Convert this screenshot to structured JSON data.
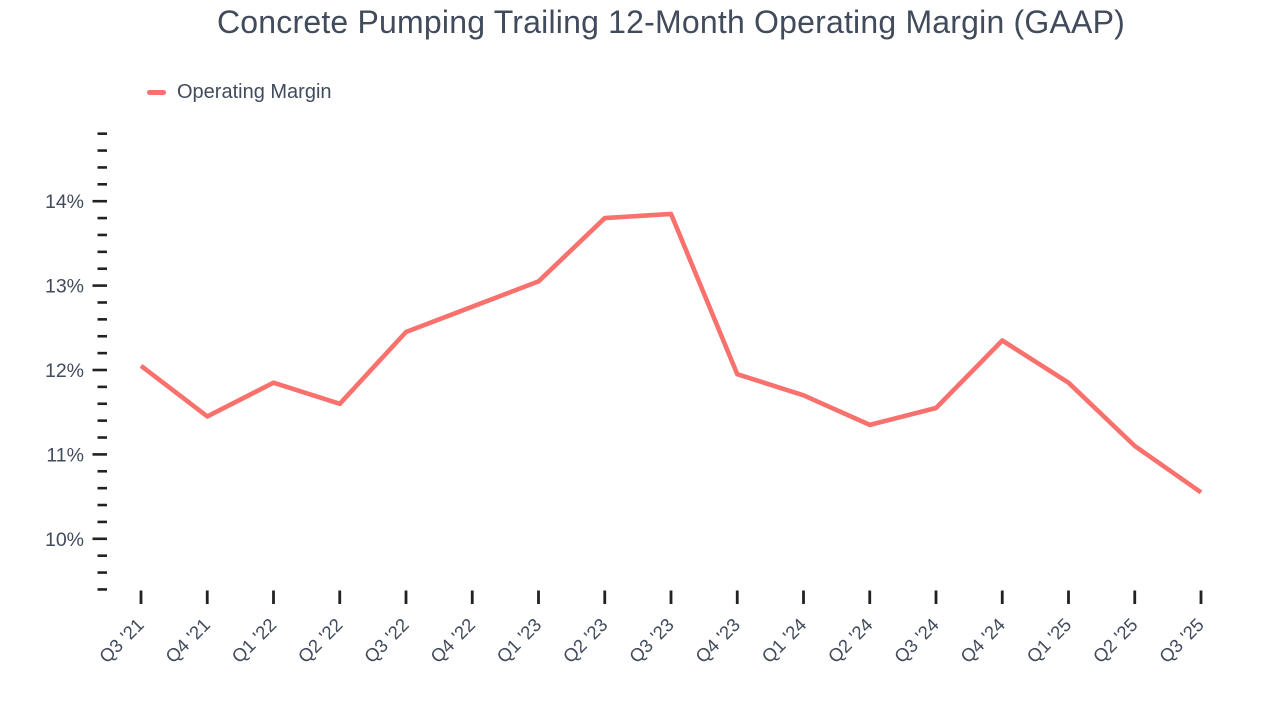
{
  "header": {
    "title": "Concrete Pumping Trailing 12-Month Operating Margin (GAAP)"
  },
  "legend": {
    "label": "Operating Margin"
  },
  "colors": {
    "line": "#F9716C",
    "label_text": "#414B5C",
    "tick": "#222222",
    "background": "#ffffff"
  },
  "chart_data": {
    "type": "line",
    "title": "Concrete Pumping Trailing 12-Month Operating Margin (GAAP)",
    "legend_position": "top-left",
    "grid": false,
    "xlabel": "",
    "ylabel": "",
    "y_unit": "%",
    "ylim": [
      9.4,
      14.8
    ],
    "y_minor_tick_step": 0.2,
    "y_major_tick_step": 1,
    "y_major_tick_labels": [
      "10%",
      "11%",
      "12%",
      "13%",
      "14%"
    ],
    "y_major_tick_values": [
      10,
      11,
      12,
      13,
      14
    ],
    "categories": [
      "Q3 '21",
      "Q4 '21",
      "Q1 '22",
      "Q2 '22",
      "Q3 '22",
      "Q4 '22",
      "Q1 '23",
      "Q2 '23",
      "Q3 '23",
      "Q4 '23",
      "Q1 '24",
      "Q2 '24",
      "Q3 '24",
      "Q4 '24",
      "Q1 '25",
      "Q2 '25",
      "Q3 '25"
    ],
    "series": [
      {
        "name": "Operating Margin",
        "color": "#F9716C",
        "values": [
          12.05,
          11.45,
          11.85,
          11.6,
          12.45,
          12.75,
          13.05,
          13.8,
          13.85,
          11.95,
          11.7,
          11.35,
          11.55,
          12.35,
          11.85,
          11.1,
          10.55
        ]
      }
    ]
  }
}
